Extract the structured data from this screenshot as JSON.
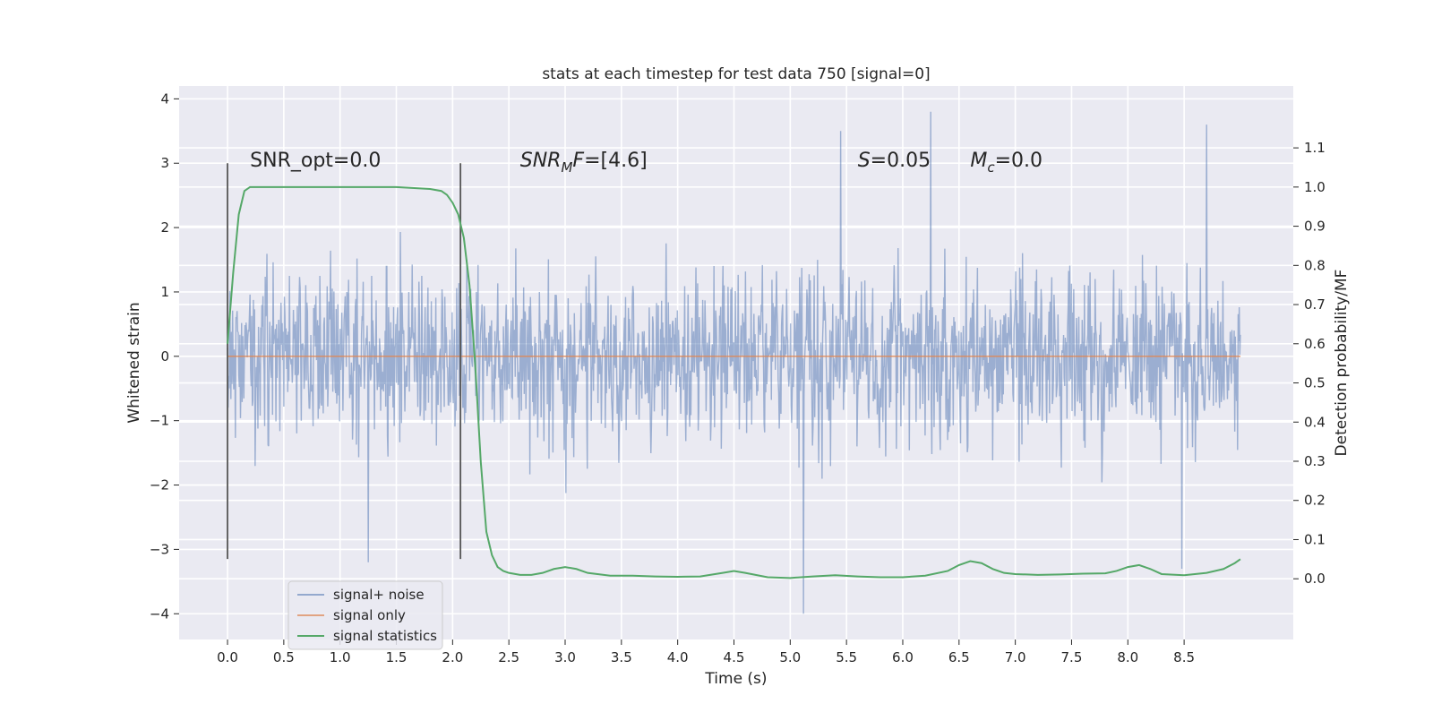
{
  "chart_data": {
    "type": "line",
    "title": "stats at each timestep for test data 750 [signal=0]",
    "xlabel": "Time (s)",
    "ylabel": "Whitened strain",
    "y2label": "Detection probability/MF",
    "xlim": [
      -0.43,
      9.47
    ],
    "ylim": [
      -4.4,
      4.2
    ],
    "y2lim": [
      -0.155,
      1.258
    ],
    "x_ticks": [
      "0.0",
      "0.5",
      "1.0",
      "1.5",
      "2.0",
      "2.5",
      "3.0",
      "3.5",
      "4.0",
      "4.5",
      "5.0",
      "5.5",
      "6.0",
      "6.5",
      "7.0",
      "7.5",
      "8.0",
      "8.5"
    ],
    "y_ticks": [
      "4",
      "3",
      "2",
      "1",
      "0",
      "−1",
      "−2",
      "−3",
      "−4"
    ],
    "y2_ticks": [
      "1.1",
      "1.0",
      "0.9",
      "0.8",
      "0.7",
      "0.6",
      "0.5",
      "0.4",
      "0.3",
      "0.2",
      "0.1",
      "0.0"
    ],
    "grid": true,
    "legend_position": "lower-left",
    "series": [
      {
        "name": "signal+ noise",
        "axis": "left",
        "color": "#4c72b0",
        "kind": "noise-trace",
        "x_range": [
          0.0,
          9.0
        ],
        "typical_envelope": [
          -2.0,
          2.0
        ],
        "extremes": [
          {
            "x": 6.25,
            "y": 3.8
          },
          {
            "x": 8.7,
            "y": 3.6
          },
          {
            "x": 5.45,
            "y": 3.5
          },
          {
            "x": 5.12,
            "y": -4.0
          },
          {
            "x": 8.48,
            "y": -3.3
          },
          {
            "x": 1.25,
            "y": -3.2
          }
        ]
      },
      {
        "name": "signal only",
        "axis": "left",
        "color": "#dd8452",
        "x": [
          0.0,
          9.0
        ],
        "y": [
          0.0,
          0.0
        ]
      },
      {
        "name": "signal statistics",
        "axis": "right",
        "color": "#55a868",
        "x": [
          0.0,
          0.05,
          0.1,
          0.15,
          0.2,
          0.3,
          0.5,
          1.0,
          1.5,
          1.8,
          1.9,
          1.95,
          2.0,
          2.05,
          2.1,
          2.15,
          2.2,
          2.25,
          2.3,
          2.35,
          2.4,
          2.45,
          2.5,
          2.6,
          2.7,
          2.8,
          2.9,
          3.0,
          3.1,
          3.2,
          3.4,
          3.6,
          3.8,
          4.0,
          4.2,
          4.4,
          4.5,
          4.6,
          4.8,
          5.0,
          5.2,
          5.4,
          5.6,
          5.8,
          6.0,
          6.2,
          6.4,
          6.5,
          6.6,
          6.7,
          6.8,
          6.9,
          7.0,
          7.2,
          7.4,
          7.6,
          7.8,
          7.9,
          8.0,
          8.1,
          8.2,
          8.3,
          8.5,
          8.7,
          8.85,
          8.95,
          9.0
        ],
        "y": [
          0.6,
          0.78,
          0.93,
          0.99,
          1.0,
          1.0,
          1.0,
          1.0,
          1.0,
          0.995,
          0.99,
          0.98,
          0.96,
          0.93,
          0.87,
          0.75,
          0.55,
          0.3,
          0.12,
          0.06,
          0.03,
          0.02,
          0.015,
          0.01,
          0.01,
          0.015,
          0.025,
          0.03,
          0.025,
          0.015,
          0.008,
          0.008,
          0.006,
          0.005,
          0.006,
          0.015,
          0.02,
          0.015,
          0.004,
          0.002,
          0.006,
          0.009,
          0.006,
          0.004,
          0.004,
          0.008,
          0.02,
          0.035,
          0.045,
          0.04,
          0.025,
          0.015,
          0.012,
          0.01,
          0.011,
          0.013,
          0.014,
          0.02,
          0.03,
          0.035,
          0.025,
          0.012,
          0.009,
          0.015,
          0.025,
          0.04,
          0.05
        ]
      }
    ],
    "vlines": [
      {
        "x": 0.0,
        "ymin": -3.15,
        "ymax": 3.0
      },
      {
        "x": 2.07,
        "ymin": -3.15,
        "ymax": 3.0
      }
    ],
    "annotations": [
      {
        "id": "snr-opt",
        "x": 0.2,
        "y": 2.95,
        "text": "SNR_opt=0.0"
      },
      {
        "id": "snr-mf",
        "x": 2.6,
        "y": 2.95,
        "prefix": "SNR",
        "sub": "M",
        "mid": "F",
        "rest": "=[4.6]"
      },
      {
        "id": "s",
        "x": 5.6,
        "y": 2.95,
        "prefix": "S",
        "rest": "=0.05"
      },
      {
        "id": "mc",
        "x": 6.6,
        "y": 2.95,
        "prefix": "M",
        "sub": "c",
        "rest": "=0.0"
      }
    ]
  }
}
